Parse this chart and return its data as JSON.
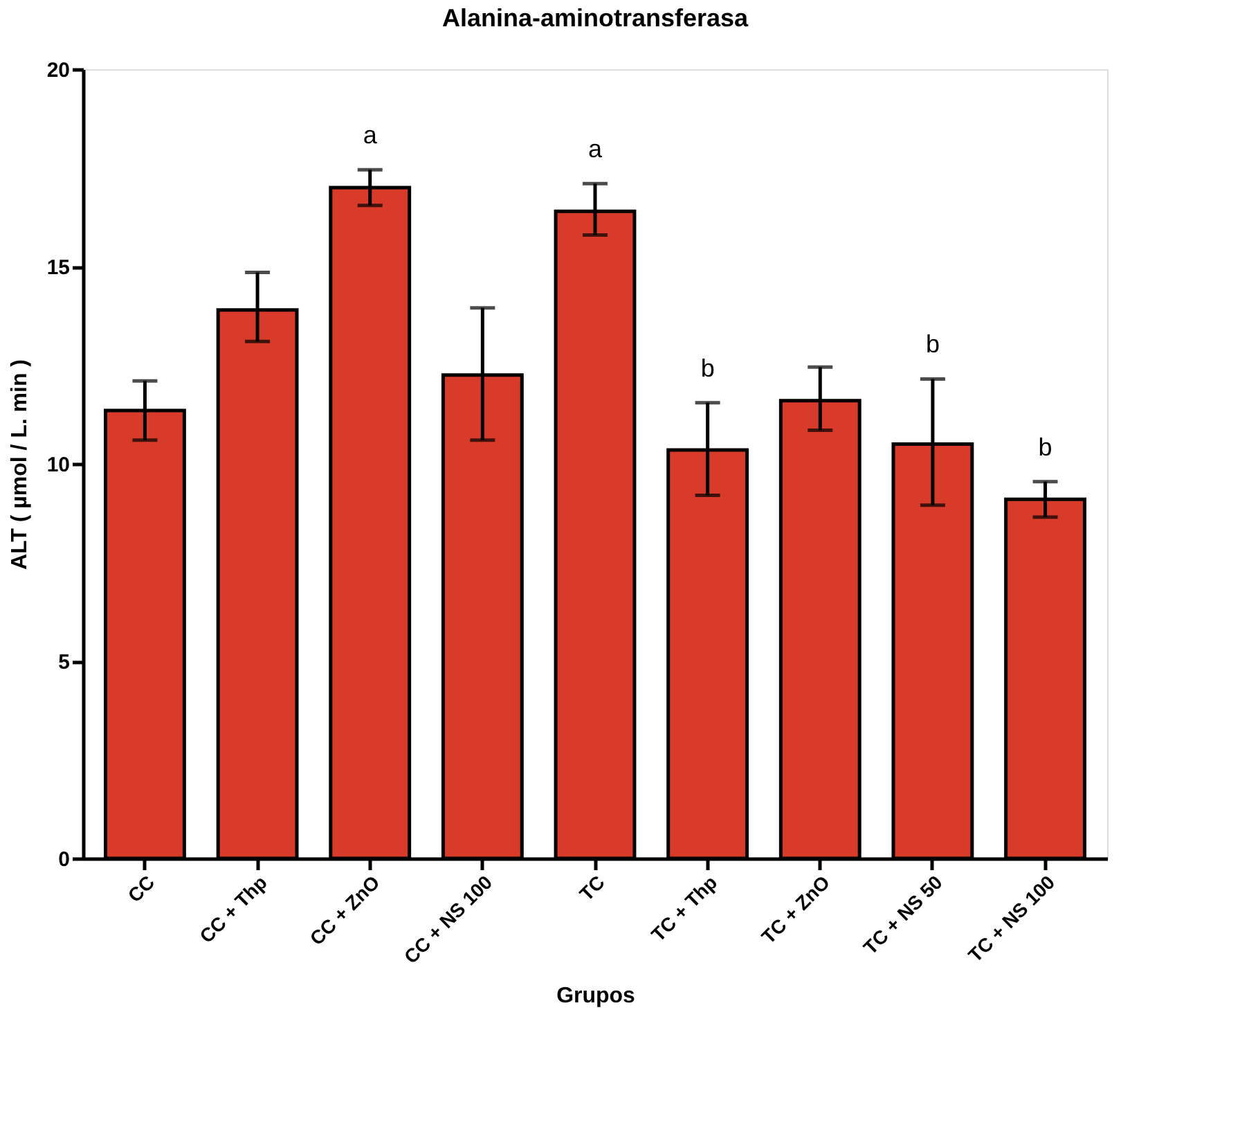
{
  "chart_data": {
    "type": "bar",
    "title": "Alanina-aminotransferasa",
    "xlabel": "Grupos",
    "ylabel": "ALT  ( µmol / L. min )",
    "categories": [
      "CC",
      "CC + Thp",
      "CC + ZnO",
      "CC + NS 100",
      "TC",
      "TC + Thp",
      "TC + ZnO",
      "TC + NS 50",
      "TC + NS 100"
    ],
    "values": [
      11.35,
      13.9,
      17.0,
      12.25,
      16.4,
      10.35,
      11.6,
      10.5,
      9.1
    ],
    "errors": [
      [
        10.6,
        12.1
      ],
      [
        13.1,
        14.85
      ],
      [
        16.55,
        17.45
      ],
      [
        10.6,
        13.95
      ],
      [
        15.8,
        17.1
      ],
      [
        9.2,
        11.55
      ],
      [
        10.85,
        12.45
      ],
      [
        8.95,
        12.15
      ],
      [
        8.65,
        9.55
      ]
    ],
    "color": "#d93b2a",
    "ylim": [
      0,
      20
    ],
    "yticks": [
      0,
      5,
      10,
      15,
      20
    ],
    "grid": false,
    "annotations": [
      {
        "text": "a",
        "x": "CC + ZnO",
        "y": 17.45
      },
      {
        "text": "a",
        "x": "TC",
        "y": 17.1
      },
      {
        "text": "b",
        "x": "TC + Thp",
        "y": 11.55
      },
      {
        "text": "b",
        "x": "TC + NS 50",
        "y": 12.15
      },
      {
        "text": "b",
        "x": "TC + NS 100",
        "y": 9.55
      }
    ]
  }
}
